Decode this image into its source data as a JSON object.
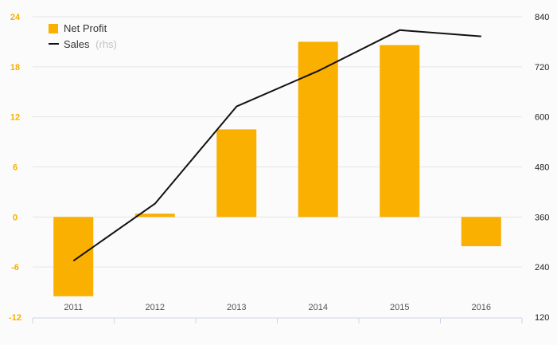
{
  "chart_data": {
    "type": "bar",
    "title": "",
    "xlabel": "",
    "ylabel": "",
    "categories": [
      "2011",
      "2012",
      "2013",
      "2014",
      "2015",
      "2016"
    ],
    "series": [
      {
        "name": "Net Profit",
        "type": "bar",
        "axis": "left",
        "color": "#f9b000",
        "values": [
          -9.5,
          0.4,
          10.5,
          21.0,
          20.6,
          -3.5
        ]
      },
      {
        "name": "Sales",
        "name_suffix": "(rhs)",
        "type": "line",
        "axis": "right",
        "color": "#111111",
        "values": [
          255,
          392,
          625,
          710,
          808,
          793
        ]
      }
    ],
    "ylim_left": [
      -12,
      24
    ],
    "yticks_left": [
      -12,
      -6,
      0,
      6,
      12,
      18,
      24
    ],
    "ylim_right": [
      120,
      840
    ],
    "yticks_right": [
      120,
      240,
      360,
      480,
      600,
      720,
      840
    ],
    "grid": true,
    "legend_position": "top-left"
  }
}
